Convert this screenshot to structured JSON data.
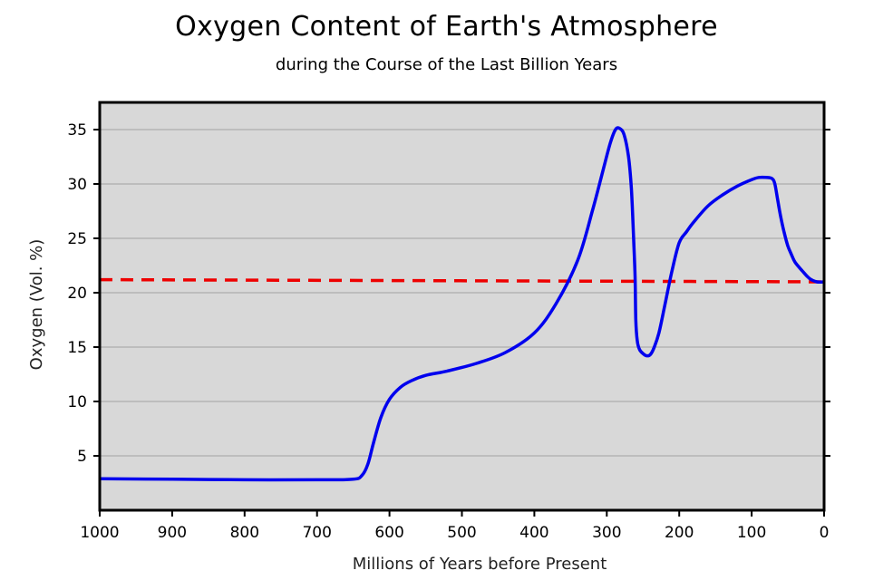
{
  "chart_data": {
    "type": "line",
    "title": "Oxygen Content of Earth's Atmosphere",
    "subtitle": "during the Course of the Last Billion Years",
    "xlabel": "Millions of Years before Present",
    "ylabel": "Oxygen (Vol. %)",
    "xlim": [
      1000,
      0
    ],
    "ylim": [
      0,
      37.5
    ],
    "x_ticks": [
      1000,
      900,
      800,
      700,
      600,
      500,
      400,
      300,
      200,
      100,
      0
    ],
    "y_ticks": [
      5,
      10,
      15,
      20,
      25,
      30,
      35
    ],
    "grid": "horizontal",
    "series": [
      {
        "color": "#0000ee",
        "style": "solid",
        "x": [
          1000,
          900,
          800,
          700,
          650,
          638,
          630,
          622,
          612,
          600,
          585,
          570,
          550,
          520,
          480,
          440,
          400,
          370,
          340,
          320,
          305,
          295,
          288,
          282,
          276,
          270,
          266,
          263,
          261,
          260,
          258,
          255,
          250,
          245,
          240,
          235,
          228,
          220,
          210,
          200,
          190,
          180,
          160,
          140,
          120,
          100,
          90,
          80,
          72,
          68,
          64,
          60,
          55,
          50,
          45,
          40,
          30,
          20,
          10,
          0
        ],
        "y": [
          2.9,
          2.85,
          2.8,
          2.8,
          2.85,
          3.2,
          4.2,
          6.2,
          8.5,
          10.2,
          11.3,
          11.9,
          12.4,
          12.8,
          13.5,
          14.5,
          16.3,
          19.0,
          23.0,
          27.5,
          31.3,
          33.8,
          35.0,
          35.1,
          34.5,
          32.5,
          29.5,
          25.0,
          21.5,
          17.5,
          15.6,
          14.8,
          14.4,
          14.2,
          14.3,
          14.9,
          16.3,
          18.8,
          22.0,
          24.6,
          25.6,
          26.5,
          28.0,
          29.0,
          29.8,
          30.4,
          30.6,
          30.6,
          30.5,
          30.0,
          28.5,
          27.0,
          25.5,
          24.3,
          23.5,
          22.8,
          22.0,
          21.3,
          21.0,
          21.0
        ]
      },
      {
        "color": "#ee0000",
        "style": "dashed",
        "x": [
          1000,
          0
        ],
        "y": [
          21.2,
          21.0
        ]
      }
    ]
  }
}
